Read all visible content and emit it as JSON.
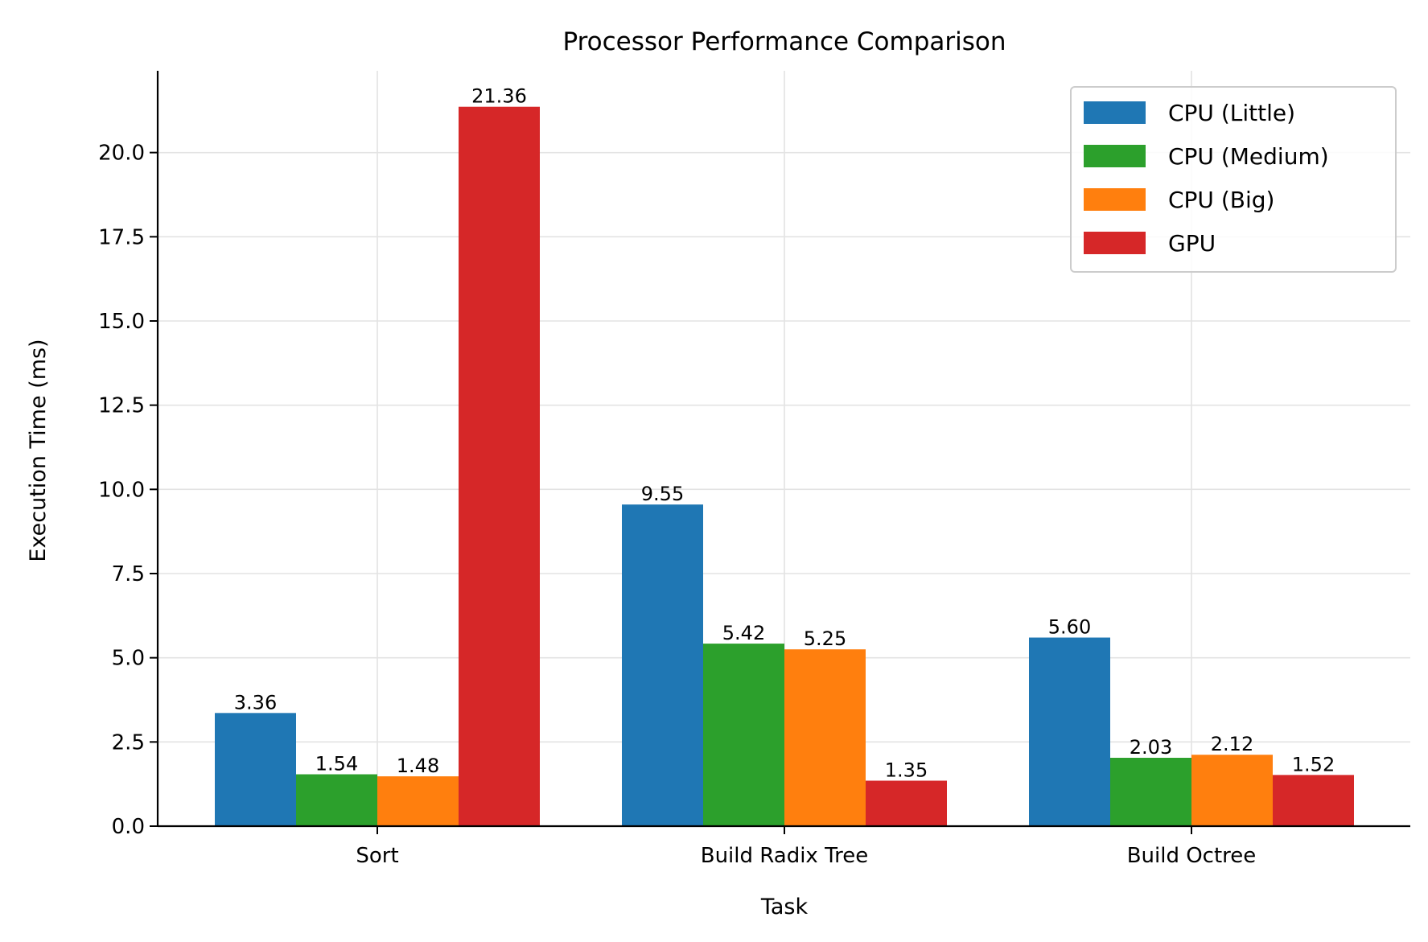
{
  "chart_data": {
    "type": "bar",
    "title": "Processor Performance Comparison",
    "xlabel": "Task",
    "ylabel": "Execution Time (ms)",
    "categories": [
      "Sort",
      "Build Radix Tree",
      "Build Octree"
    ],
    "series": [
      {
        "name": "CPU (Little)",
        "color": "#1f77b4",
        "values": [
          3.36,
          9.55,
          5.6
        ]
      },
      {
        "name": "CPU (Medium)",
        "color": "#2ca02c",
        "values": [
          1.54,
          5.42,
          2.03
        ]
      },
      {
        "name": "CPU (Big)",
        "color": "#ff7f0e",
        "values": [
          1.48,
          5.25,
          2.12
        ]
      },
      {
        "name": "GPU",
        "color": "#d62728",
        "values": [
          21.36,
          1.35,
          1.52
        ]
      }
    ],
    "data_labels": [
      [
        "3.36",
        "9.55",
        "5.60"
      ],
      [
        "1.54",
        "5.42",
        "2.03"
      ],
      [
        "1.48",
        "5.25",
        "2.12"
      ],
      [
        "21.36",
        "1.35",
        "1.52"
      ]
    ],
    "yticks": [
      0.0,
      2.5,
      5.0,
      7.5,
      10.0,
      12.5,
      15.0,
      17.5,
      20.0
    ],
    "ytick_labels": [
      "0.0",
      "2.5",
      "5.0",
      "7.5",
      "10.0",
      "12.5",
      "15.0",
      "17.5",
      "20.0"
    ],
    "ylim": [
      0,
      22.428
    ],
    "grid": true,
    "legend_position": "top-right"
  }
}
